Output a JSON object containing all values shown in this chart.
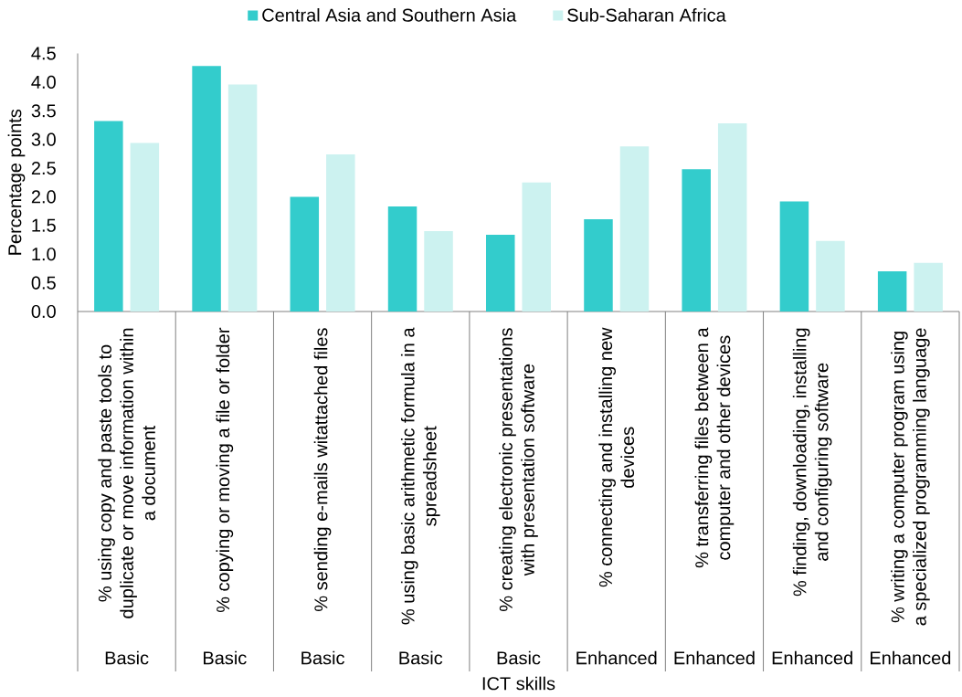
{
  "chart_data": {
    "type": "bar",
    "xlabel": "ICT skills",
    "ylabel": "Percentage points",
    "categories": [
      "% using copy and paste tools to duplicate or move information within a document",
      "% copying or moving a file or folder",
      "% sending e-mails witattached files",
      "% using basic arithmetic formula in a spreadsheet",
      "% creating electronic presentations with presentation software",
      "% connecting and installing new devices",
      "% transferring files between a computer and other devices",
      "% finding, downloading, installing and configuring software",
      "% writing a computer program using a specialized programming language"
    ],
    "series": [
      {
        "name": "Central Asia and Southern Asia",
        "color": "#33CCCC",
        "values": [
          3.32,
          4.28,
          2.0,
          1.83,
          1.34,
          1.61,
          2.48,
          1.92,
          0.7
        ]
      },
      {
        "name": "Sub-Saharan Africa",
        "color": "#CCF2F0",
        "values": [
          2.94,
          3.96,
          2.74,
          1.4,
          2.25,
          2.88,
          3.28,
          1.23,
          0.85
        ]
      }
    ],
    "ylim": [
      0,
      4.5
    ],
    "yticks": [
      {
        "value": 0,
        "label": "0.0"
      },
      0.5,
      {
        "value": 1,
        "label": "1.0"
      },
      1.5,
      {
        "value": 2,
        "label": "2.0"
      },
      2.5,
      {
        "value": 3,
        "label": "3.0"
      },
      3.5,
      {
        "value": 4,
        "label": "4.0"
      },
      4.5
    ],
    "legend": "top",
    "annotations": [
      "Basic",
      "Basic",
      "Basic",
      "Basic",
      "Basic",
      "Enhanced",
      "Enhanced",
      "Enhanced",
      "Enhanced"
    ]
  }
}
